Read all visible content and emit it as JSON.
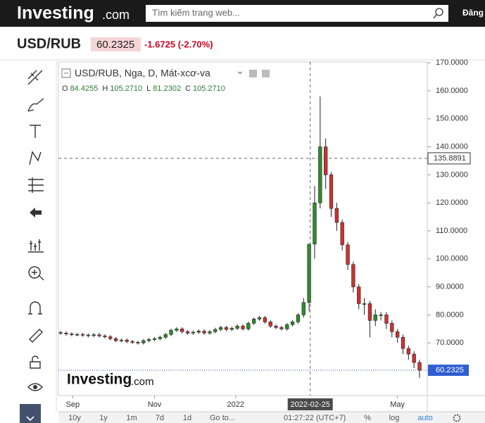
{
  "header": {
    "logo_bold": "Investing",
    "logo_suffix": ".com",
    "search_placeholder": "Tìm kiếm trang web...",
    "login": "Đăng"
  },
  "quote": {
    "symbol": "USD/RUB",
    "price": "60.2325",
    "change": "-1.6725 (-2.70%)"
  },
  "chart_data": {
    "type": "candlestick",
    "title": "USD/RUB, Nga, D, Mát-xcơ-va",
    "legend_fields": [
      {
        "key": "O",
        "value": "84.4255"
      },
      {
        "key": "H",
        "value": "105.2710"
      },
      {
        "key": "L",
        "value": "81.2302"
      },
      {
        "key": "C",
        "value": "105.2710"
      }
    ],
    "up_color": "#2e8b2e",
    "down_color": "#d03030",
    "open": [
      73.7,
      73.5,
      73.2,
      73.0,
      73.0,
      72.8,
      72.6,
      72.9,
      72.5,
      72.2,
      71.5,
      70.8,
      71.0,
      70.5,
      70.2,
      70.0,
      70.8,
      71.2,
      71.5,
      72.0,
      73.0,
      74.5,
      75.0,
      74.0,
      73.5,
      73.8,
      74.2,
      73.5,
      74.0,
      74.8,
      75.5,
      74.8,
      75.2,
      76.0,
      75.0,
      77.0,
      78.5,
      79.0,
      77.5,
      76.0,
      75.5,
      75.0,
      76.5,
      77.5,
      80.0,
      84.4255,
      105.271,
      120.0,
      140.0,
      130.0,
      118.0,
      113.0,
      105.0,
      98.0,
      90.0,
      84.0,
      84.0,
      78.0,
      80.0,
      80.0,
      77.0,
      74.0,
      72.0,
      68.0,
      66.0,
      63.0
    ],
    "high": [
      74.3,
      74.1,
      73.8,
      73.6,
      73.6,
      73.4,
      73.5,
      73.5,
      73.1,
      72.8,
      72.1,
      71.6,
      71.6,
      71.1,
      70.8,
      71.4,
      71.8,
      72.1,
      72.6,
      73.6,
      75.1,
      75.6,
      75.6,
      74.6,
      74.4,
      74.8,
      74.8,
      74.6,
      75.4,
      76.1,
      76.1,
      75.8,
      76.6,
      76.6,
      77.6,
      79.1,
      79.6,
      79.6,
      78.1,
      76.6,
      76.1,
      77.1,
      78.1,
      80.6,
      86.0,
      105.271,
      126.0,
      158.0,
      143.0,
      131.0,
      120.0,
      114.0,
      106.0,
      99.0,
      91.0,
      86.0,
      85.0,
      82.0,
      81.0,
      81.0,
      78.0,
      75.0,
      73.0,
      69.0,
      67.0,
      64.0
    ],
    "low": [
      72.9,
      72.6,
      72.4,
      72.4,
      72.2,
      72.0,
      72.0,
      71.9,
      71.6,
      70.9,
      70.2,
      70.2,
      69.9,
      69.6,
      69.4,
      69.4,
      70.2,
      70.6,
      70.9,
      71.4,
      72.4,
      73.9,
      73.4,
      72.9,
      72.9,
      73.2,
      72.9,
      72.9,
      73.4,
      74.2,
      74.2,
      74.2,
      74.6,
      74.4,
      74.4,
      76.4,
      77.9,
      76.9,
      75.4,
      74.9,
      74.4,
      74.4,
      75.9,
      76.9,
      79.0,
      81.2302,
      100.0,
      118.0,
      125.0,
      115.0,
      110.0,
      103.0,
      96.0,
      88.0,
      82.0,
      80.0,
      72.0,
      76.0,
      78.0,
      75.0,
      72.0,
      70.0,
      66.0,
      64.0,
      61.0,
      57.5
    ],
    "close": [
      73.5,
      73.2,
      73.0,
      73.0,
      72.8,
      72.6,
      72.9,
      72.5,
      72.2,
      71.5,
      70.8,
      71.0,
      70.5,
      70.2,
      70.0,
      70.8,
      71.2,
      71.5,
      72.0,
      73.0,
      74.5,
      75.0,
      74.0,
      73.5,
      73.8,
      74.2,
      73.5,
      74.0,
      74.8,
      75.5,
      74.8,
      75.2,
      76.0,
      75.0,
      77.0,
      78.5,
      79.0,
      77.5,
      76.0,
      75.5,
      75.0,
      76.5,
      77.5,
      80.0,
      84.4255,
      105.271,
      120.0,
      140.0,
      130.0,
      118.0,
      113.0,
      105.0,
      98.0,
      90.0,
      84.0,
      84.0,
      78.0,
      80.0,
      80.0,
      77.0,
      74.0,
      72.0,
      68.0,
      66.0,
      63.0,
      60.2325
    ],
    "xlim": [
      -0.4,
      66.4
    ],
    "xticks": [
      {
        "value": 2.2,
        "label": "Sep"
      },
      {
        "value": 17,
        "label": "Nov"
      },
      {
        "value": 31.7,
        "label": "2022"
      },
      {
        "value": 61,
        "label": "May"
      }
    ],
    "ylim": [
      51.2,
      170.3
    ],
    "yticks": [
      {
        "value": 60,
        "label": "60.0000"
      },
      {
        "value": 70,
        "label": "70.0000"
      },
      {
        "value": 80,
        "label": "80.0000"
      },
      {
        "value": 90,
        "label": "90.0000"
      },
      {
        "value": 100,
        "label": "100.0000"
      },
      {
        "value": 110,
        "label": "110.0000"
      },
      {
        "value": 120,
        "label": "120.0000"
      },
      {
        "value": 130,
        "label": "130.0000"
      },
      {
        "value": 140,
        "label": "140.0000"
      },
      {
        "value": 150,
        "label": "150.0000"
      },
      {
        "value": 160,
        "label": "160.0000"
      },
      {
        "value": 170,
        "label": "170.0000"
      }
    ],
    "crosshair": {
      "x": {
        "value": 45.2,
        "label": "2022-02-25"
      },
      "y": 135.8891
    },
    "last_price": 60.2325,
    "watermark_bold": "Investing",
    "watermark_suffix": ".com"
  },
  "toolbar": {
    "ranges": [
      "10y",
      "1y",
      "1m",
      "7d",
      "1d"
    ],
    "goto": "Go to...",
    "clock": "01:27:22 (UTC+7)",
    "options": [
      "%",
      "log",
      "auto"
    ]
  }
}
